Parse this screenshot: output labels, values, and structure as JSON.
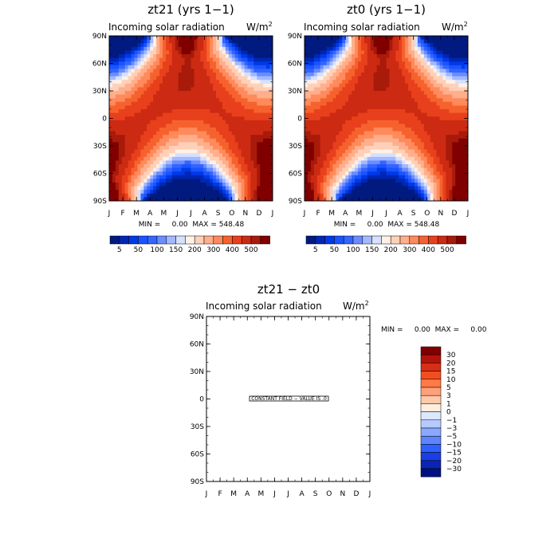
{
  "chart_data": [
    {
      "type": "heatmap",
      "panel": "top-left",
      "title": "zt21 (yrs 1−1)",
      "subtitle": "Incoming solar radiation",
      "units": "W/m",
      "units_power": "2",
      "x_ticks": [
        "J",
        "F",
        "M",
        "A",
        "M",
        "J",
        "J",
        "A",
        "S",
        "O",
        "N",
        "D",
        "J"
      ],
      "y_ticks": [
        "90N",
        "60N",
        "30N",
        "0",
        "30S",
        "60S",
        "90S"
      ],
      "stats": "MIN =     0.00  MAX = 548.48",
      "colorbar_labels": [
        "5",
        "50",
        "100",
        "150",
        "200",
        "300",
        "400",
        "500"
      ],
      "min": 0.0,
      "max": 548.48
    },
    {
      "type": "heatmap",
      "panel": "top-right",
      "title": "zt0 (yrs 1−1)",
      "subtitle": "Incoming solar radiation",
      "units": "W/m",
      "units_power": "2",
      "x_ticks": [
        "J",
        "F",
        "M",
        "A",
        "M",
        "J",
        "J",
        "A",
        "S",
        "O",
        "N",
        "D",
        "J"
      ],
      "y_ticks": [
        "90N",
        "60N",
        "30N",
        "0",
        "30S",
        "60S",
        "90S"
      ],
      "stats": "MIN =     0.00  MAX = 548.48",
      "colorbar_labels": [
        "5",
        "50",
        "100",
        "150",
        "200",
        "300",
        "400",
        "500"
      ],
      "min": 0.0,
      "max": 548.48
    },
    {
      "type": "heatmap",
      "panel": "bottom",
      "title": "zt21 − zt0",
      "subtitle": "Incoming solar radiation",
      "units": "W/m",
      "units_power": "2",
      "x_ticks": [
        "J",
        "F",
        "M",
        "A",
        "M",
        "J",
        "J",
        "A",
        "S",
        "O",
        "N",
        "D",
        "J"
      ],
      "y_ticks": [
        "90N",
        "60N",
        "30N",
        "0",
        "30S",
        "60S",
        "90S"
      ],
      "stats": "MIN =     0.00  MAX =     0.00",
      "annotation": "CONSTANT FIELD − VALUE IS .0",
      "colorbar_labels": [
        "30",
        "20",
        "15",
        "10",
        "5",
        "3",
        "1",
        "0",
        "−1",
        "−3",
        "−5",
        "−10",
        "−15",
        "−20",
        "−30"
      ],
      "min": 0.0,
      "max": 0.0
    }
  ],
  "colors": {
    "solar_scale": [
      "#001a80",
      "#0026b3",
      "#0039e6",
      "#1a53ff",
      "#3366ff",
      "#6b8cff",
      "#a3b8ff",
      "#d6e0ff",
      "#fff1e6",
      "#ffd0b8",
      "#ffaf8c",
      "#ff8a5c",
      "#f6622e",
      "#e8401c",
      "#cc2a12",
      "#a81a0a",
      "#800000"
    ],
    "diff_scale": [
      "#800000",
      "#b3140a",
      "#d92e16",
      "#f24d1f",
      "#ff7a45",
      "#ffa07a",
      "#ffc8a8",
      "#ffeedd",
      "#dde8ff",
      "#b5caff",
      "#8aa8ff",
      "#5c85ff",
      "#2e60ff",
      "#1a3ee6",
      "#0a24b3",
      "#001080"
    ],
    "axis": "#000000"
  }
}
